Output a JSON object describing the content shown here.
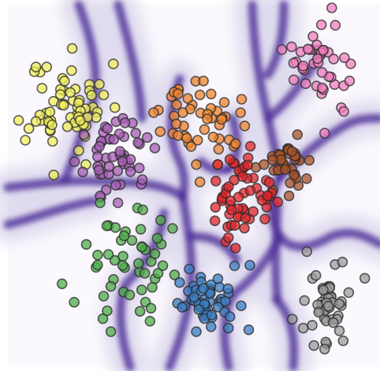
{
  "chart_data": {
    "type": "scatter",
    "background": "decision-boundary-heatmap",
    "grid": false,
    "legend": "none",
    "xlim": [
      0,
      10
    ],
    "ylim": [
      0,
      10
    ],
    "boundary_color": "#4b2a96",
    "series": [
      {
        "color": "#f2ef5c",
        "cx": 1.6,
        "cy": 7.2,
        "sx": 0.55,
        "sy": 0.6,
        "n": 55,
        "seed": 11,
        "points": [
          [
            0.7,
            8.3
          ],
          [
            1.0,
            8.3
          ],
          [
            1.7,
            8.2
          ],
          [
            1.5,
            7.9
          ],
          [
            2.6,
            7.5
          ],
          [
            0.4,
            6.2
          ],
          [
            1.9,
            5.9
          ],
          [
            1.2,
            5.2
          ],
          [
            2.1,
            5.5
          ]
        ]
      },
      {
        "color": "#a860b6",
        "cx": 3.0,
        "cy": 5.7,
        "sx": 0.45,
        "sy": 0.45,
        "n": 50,
        "seed": 23,
        "points": [
          [
            3.2,
            6.7
          ],
          [
            3.5,
            6.4
          ],
          [
            3.6,
            5.4
          ],
          [
            2.5,
            4.6
          ],
          [
            3.0,
            4.4
          ]
        ]
      },
      {
        "color": "#f2862f",
        "cx": 5.3,
        "cy": 6.8,
        "sx": 0.55,
        "sy": 0.45,
        "n": 45,
        "seed": 37,
        "points": [
          [
            5.4,
            7.9
          ],
          [
            5.3,
            7.5
          ],
          [
            6.3,
            6.1
          ],
          [
            5.8,
            5.5
          ],
          [
            5.2,
            5.5
          ],
          [
            5.3,
            5.0
          ]
        ]
      },
      {
        "color": "#f280bf",
        "cx": 8.7,
        "cy": 8.3,
        "sx": 0.5,
        "sy": 0.5,
        "n": 40,
        "seed": 41,
        "points": [
          [
            9.0,
            10.0
          ],
          [
            9.1,
            9.5
          ],
          [
            7.6,
            8.8
          ],
          [
            9.5,
            7.9
          ],
          [
            8.8,
            6.4
          ]
        ]
      },
      {
        "color": "#a85428",
        "cx": 7.8,
        "cy": 5.6,
        "sx": 0.35,
        "sy": 0.35,
        "n": 35,
        "seed": 53,
        "points": [
          [
            7.1,
            5.5
          ],
          [
            7.8,
            4.6
          ]
        ]
      },
      {
        "color": "#e3262a",
        "cx": 6.5,
        "cy": 4.5,
        "sx": 0.45,
        "sy": 0.6,
        "n": 55,
        "seed": 67,
        "points": [
          [
            5.8,
            5.5
          ],
          [
            6.1,
            3.4
          ],
          [
            6.3,
            3.1
          ]
        ]
      },
      {
        "color": "#4fae4a",
        "cx": 3.3,
        "cy": 2.8,
        "sx": 0.6,
        "sy": 0.7,
        "n": 45,
        "seed": 79,
        "points": [
          [
            2.5,
            4.4
          ],
          [
            4.2,
            3.9
          ],
          [
            3.7,
            4.2
          ],
          [
            2.7,
            1.3
          ],
          [
            2.8,
            0.7
          ],
          [
            3.9,
            1.0
          ],
          [
            2.8,
            2.0
          ]
        ]
      },
      {
        "color": "#3b7fc4",
        "cx": 5.6,
        "cy": 1.6,
        "sx": 0.45,
        "sy": 0.4,
        "n": 50,
        "seed": 83,
        "points": [
          [
            5.0,
            2.5
          ],
          [
            6.1,
            0.8
          ],
          [
            5.2,
            0.7
          ],
          [
            4.8,
            1.4
          ]
        ]
      },
      {
        "color": "#9c9c9c",
        "cx": 8.7,
        "cy": 1.5,
        "sx": 0.4,
        "sy": 0.55,
        "n": 45,
        "seed": 97,
        "points": [
          [
            8.3,
            3.0
          ],
          [
            9.3,
            2.7
          ],
          [
            8.8,
            0.2
          ],
          [
            8.2,
            0.8
          ],
          [
            8.5,
            0.3
          ]
        ]
      }
    ]
  }
}
